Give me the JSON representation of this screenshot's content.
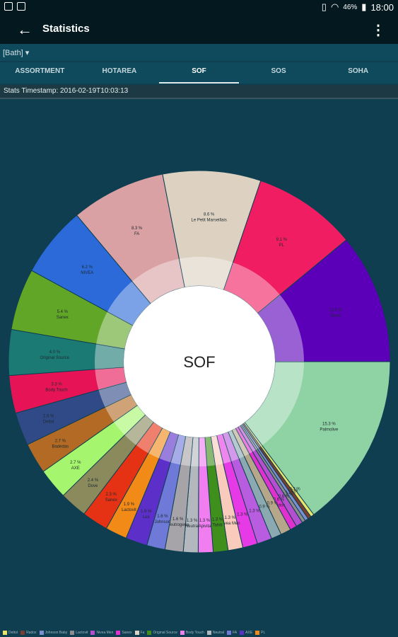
{
  "status": {
    "battery": "46%",
    "time": "18:00"
  },
  "appbar": {
    "title": "Statistics",
    "back_icon": "arrow-left-icon",
    "more_icon": "more-vert-icon"
  },
  "filter": {
    "label": "[Bath] ▾"
  },
  "tabs": [
    {
      "label": "ASSORTMENT",
      "active": false
    },
    {
      "label": "HOTAREA",
      "active": false
    },
    {
      "label": "SOF",
      "active": true
    },
    {
      "label": "SOS",
      "active": false
    },
    {
      "label": "SOHA",
      "active": false
    }
  ],
  "timestamp": "Stats Timestamp: 2016-02-19T10:03:13",
  "chart_data": {
    "type": "pie",
    "center_label": "SOF",
    "segments": [
      {
        "label": "Palmolive",
        "value": 15.3,
        "text": "15.3 %",
        "color": "#8fd2a4"
      },
      {
        "label": "",
        "value": 0.3,
        "text": "0.3 %",
        "color": "#e8e36a"
      },
      {
        "label": "",
        "value": 0.3,
        "text": "0.3 %",
        "color": "#7a3e2f"
      },
      {
        "label": "",
        "value": 0.3,
        "text": "0.3 %",
        "color": "#7b8ed0"
      },
      {
        "label": "",
        "value": 0.3,
        "text": "0.3 %",
        "color": "#8c8c8c"
      },
      {
        "label": "",
        "value": 0.6,
        "text": "0.6 %",
        "color": "#b450d0"
      },
      {
        "label": "Radox",
        "value": 0.6,
        "text": "0.6 %",
        "color": "#e030d0"
      },
      {
        "label": "",
        "value": 0.9,
        "text": "0.9 %",
        "color": "#b7a78a"
      },
      {
        "label": "",
        "value": 0.9,
        "text": "0.9 %",
        "color": "#8aa9b0"
      },
      {
        "label": "",
        "value": 1.3,
        "text": "1.3 %",
        "color": "#b95de0"
      },
      {
        "label": "",
        "value": 1.3,
        "text": "1.3 %",
        "color": "#e53ae6"
      },
      {
        "label": "Nivea Men",
        "value": 1.3,
        "text": "1.3 %",
        "color": "#f9cbbd"
      },
      {
        "label": "Tahiti",
        "value": 1.3,
        "text": "1.3 %",
        "color": "#3f8f1d"
      },
      {
        "label": "Apivita",
        "value": 1.3,
        "text": "1.3 %",
        "color": "#f07ef0"
      },
      {
        "label": "Neutral",
        "value": 1.3,
        "text": "1.3 %",
        "color": "#b3b8bf"
      },
      {
        "label": "Neutrogena",
        "value": 1.6,
        "text": "1.6 %",
        "color": "#a6a3a9"
      },
      {
        "label": "Johnson",
        "value": 1.6,
        "text": "1.6 %",
        "color": "#6f7ad8"
      },
      {
        "label": "Lux",
        "value": 1.9,
        "text": "1.9 %",
        "color": "#5c2fc8"
      },
      {
        "label": "Lactovit",
        "value": 1.9,
        "text": "1.9 %",
        "color": "#f28a17"
      },
      {
        "label": "Sanex",
        "value": 2.3,
        "text": "2.3 %",
        "color": "#e53215"
      },
      {
        "label": "Dove",
        "value": 2.4,
        "text": "2.4 %",
        "color": "#8a8a5c"
      },
      {
        "label": "AXE",
        "value": 2.7,
        "text": "2.7 %",
        "color": "#a6f56e"
      },
      {
        "label": "Badedas",
        "value": 2.7,
        "text": "2.7 %",
        "color": "#b26a25"
      },
      {
        "label": "Dettol",
        "value": 2.9,
        "text": "2.9 %",
        "color": "#2f4a86"
      },
      {
        "label": "Body Touch",
        "value": 3.3,
        "text": "3.3 %",
        "color": "#e61457"
      },
      {
        "label": "Original Source",
        "value": 4.0,
        "text": "4.0 %",
        "color": "#1c7a74"
      },
      {
        "label": "Sanex",
        "value": 5.4,
        "text": "5.4 %",
        "color": "#62a628"
      },
      {
        "label": "NIVEA",
        "value": 6.2,
        "text": "6.2 %",
        "color": "#2b6ad8"
      },
      {
        "label": "FA",
        "value": 8.3,
        "text": "8.3 %",
        "color": "#d9a1a3"
      },
      {
        "label": "Le Petit Marseillais",
        "value": 8.6,
        "text": "8.6 %",
        "color": "#ddd2c2"
      },
      {
        "label": "PL",
        "value": 9.1,
        "text": "9.1 %",
        "color": "#f01d63"
      },
      {
        "label": "Dove",
        "value": 11.4,
        "text": "11.4 %",
        "color": "#5b00b8"
      }
    ]
  },
  "legend": [
    {
      "label": "Dettol",
      "color": "#e8e36a"
    },
    {
      "label": "Radox",
      "color": "#7a3e2f"
    },
    {
      "label": "Johnson Baby",
      "color": "#7b8ed0"
    },
    {
      "label": "Lactovit",
      "color": "#8c8c8c"
    },
    {
      "label": "Nivea Men",
      "color": "#b450d0"
    },
    {
      "label": "Sanex",
      "color": "#e030d0"
    },
    {
      "label": "Fa",
      "color": "#ddd2c2"
    },
    {
      "label": "Original Source",
      "color": "#3f8f1d"
    },
    {
      "label": "Body Touch",
      "color": "#f07ef0"
    },
    {
      "label": "Neutral",
      "color": "#b3b8bf"
    },
    {
      "label": "FA",
      "color": "#6f7ad8"
    },
    {
      "label": "AXE",
      "color": "#5c2fc8"
    },
    {
      "label": "PL",
      "color": "#f28a17"
    }
  ]
}
